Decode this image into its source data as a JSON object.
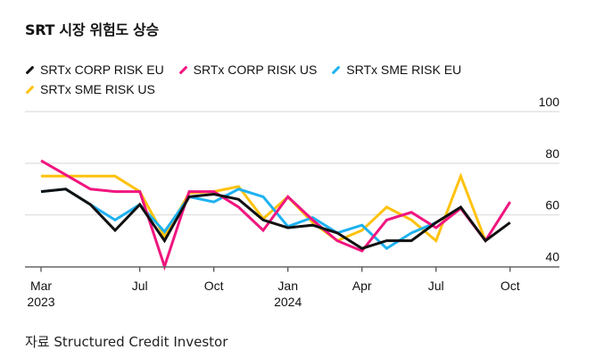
{
  "title": "SRT 시장 위험도 상승",
  "source": "자료 Structured Credit Investor",
  "chart_data": {
    "type": "line",
    "title": "SRT 시장 위험도 상승",
    "xlabel": "",
    "ylabel": "",
    "ylim": [
      40,
      100
    ],
    "yticks": [
      40,
      60,
      80,
      100
    ],
    "grid": true,
    "legend_position": "top-left",
    "x": [
      "2023-03",
      "2023-04",
      "2023-05",
      "2023-06",
      "2023-07",
      "2023-08",
      "2023-09",
      "2023-10",
      "2023-11",
      "2023-12",
      "2024-01",
      "2024-02",
      "2024-03",
      "2024-04",
      "2024-05",
      "2024-06",
      "2024-07",
      "2024-08",
      "2024-09",
      "2024-10"
    ],
    "xticks": [
      {
        "index": 0,
        "label": "Mar",
        "sublabel": "2023"
      },
      {
        "index": 4,
        "label": "Jul",
        "sublabel": ""
      },
      {
        "index": 7,
        "label": "Oct",
        "sublabel": ""
      },
      {
        "index": 10,
        "label": "Jan",
        "sublabel": "2024"
      },
      {
        "index": 13,
        "label": "Apr",
        "sublabel": ""
      },
      {
        "index": 16,
        "label": "Jul",
        "sublabel": ""
      },
      {
        "index": 19,
        "label": "Oct",
        "sublabel": ""
      }
    ],
    "series": [
      {
        "name": "SRTx SME RISK US",
        "color": "#ffc20e",
        "values": [
          75,
          75,
          75,
          75,
          69,
          51.5,
          68.5,
          69,
          71,
          58.5,
          67,
          57,
          50,
          54,
          63,
          58,
          50,
          75,
          50,
          null
        ]
      },
      {
        "name": "SRTx SME RISK EU",
        "color": "#1eb1f0",
        "values": [
          69,
          70,
          64,
          58,
          64,
          53.5,
          67,
          65,
          70,
          67,
          55.5,
          59,
          53,
          56,
          47,
          53,
          57,
          null,
          null,
          null
        ]
      },
      {
        "name": "SRTx CORP RISK US",
        "color": "#f0157f",
        "values": [
          81,
          75.5,
          70,
          69,
          69,
          40,
          69,
          69,
          63,
          54,
          67,
          58,
          50,
          46,
          58,
          61,
          55,
          62.5,
          50,
          65
        ]
      },
      {
        "name": "SRTx CORP RISK EU",
        "color": "#111111",
        "values": [
          69,
          70,
          64,
          54,
          64,
          50,
          67,
          68,
          66,
          58,
          55,
          56,
          53,
          47,
          50,
          50,
          57,
          63,
          50,
          57
        ]
      }
    ],
    "legend_order": [
      3,
      2,
      1,
      0
    ]
  }
}
